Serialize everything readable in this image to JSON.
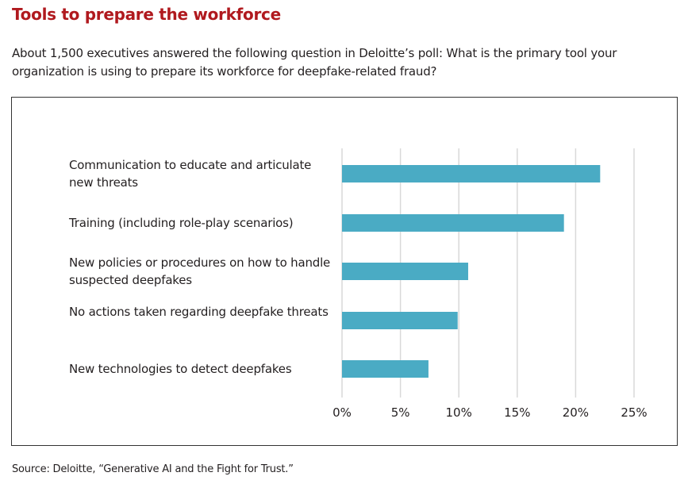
{
  "title": "Tools to prepare the workforce",
  "subtitle": "About 1,500 executives answered the following question in Deloitte’s poll: What is the primary tool your organization is using to prepare its workforce for deepfake-related fraud?",
  "source": "Source: Deloitte, “Generative AI and the Fight for Trust.”",
  "chart_data": {
    "type": "bar",
    "orientation": "horizontal",
    "title": "Tools to prepare the workforce",
    "categories": [
      "Communication to educate and articulate new threats",
      "Training (including role-play scenarios)",
      "New policies or procedures on how to handle suspected deepfakes",
      "No actions taken regarding deepfake threats",
      "New technologies to detect deepfakes"
    ],
    "values": [
      22.1,
      19.0,
      10.8,
      9.9,
      7.4
    ],
    "xlim": [
      0,
      25
    ],
    "xticks": [
      "0%",
      "5%",
      "10%",
      "15%",
      "20%",
      "25%"
    ],
    "grid": true,
    "bar_color": "#4aabc4",
    "xlabel": "",
    "ylabel": ""
  }
}
